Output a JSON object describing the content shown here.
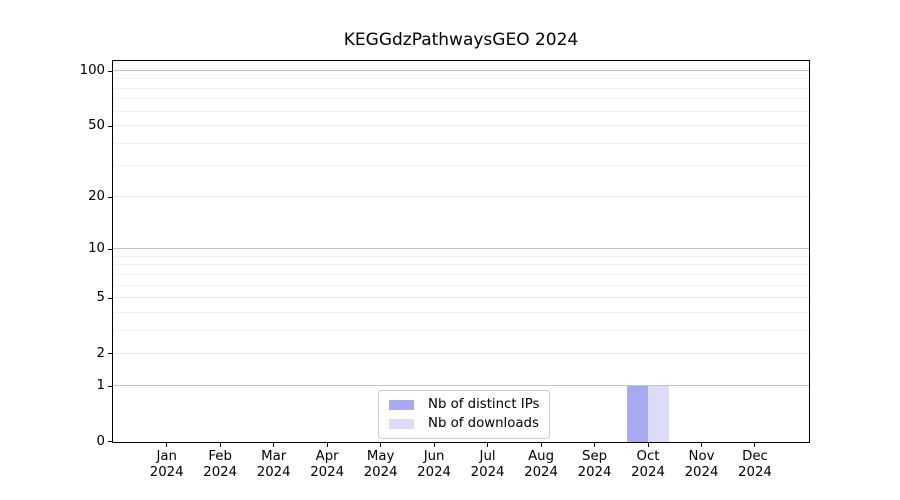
{
  "figure": {
    "title": "KEGGdzPathwaysGEO 2024"
  },
  "chart_data": {
    "type": "bar",
    "title": "KEGGdzPathwaysGEO 2024",
    "x_axis": {
      "categories": [
        "Jan",
        "Feb",
        "Mar",
        "Apr",
        "May",
        "Jun",
        "Jul",
        "Aug",
        "Sep",
        "Oct",
        "Nov",
        "Dec"
      ],
      "year_label": "2024"
    },
    "y_axis": {
      "scale": "log1p",
      "tick_labels": [
        100,
        50,
        20,
        10,
        5,
        2,
        1,
        0
      ],
      "power_gridlines": [
        1,
        10,
        100
      ],
      "mid_gridlines": [
        2,
        5,
        20,
        50
      ],
      "minor_gridlines": [
        3,
        4,
        6,
        7,
        8,
        9,
        30,
        40,
        60,
        70,
        80,
        90
      ],
      "range": [
        0,
        113.5
      ],
      "grid": true
    },
    "series": [
      {
        "name": "Nb of distinct IPs",
        "color": "#a9a9f2",
        "values": [
          0,
          0,
          0,
          0,
          0,
          0,
          0,
          0,
          0,
          1,
          0,
          0
        ]
      },
      {
        "name": "Nb of downloads",
        "color": "#dcdcf8",
        "values": [
          0,
          0,
          0,
          0,
          0,
          0,
          0,
          0,
          0,
          1,
          0,
          0
        ]
      }
    ],
    "legend": {
      "position": "bottom-center",
      "items": [
        "Nb of distinct IPs",
        "Nb of downloads"
      ]
    }
  },
  "colors": {
    "axis_frame": "#000000",
    "grid_major": "#c3c3c3",
    "grid_mid": "#e7e7e7",
    "grid_minor": "#f2f2f2",
    "background": "#ffffff",
    "legend_border": "#cbcbcb",
    "bar_distinct_ips": "#a9a9f2",
    "bar_downloads": "#dcdcf8"
  }
}
